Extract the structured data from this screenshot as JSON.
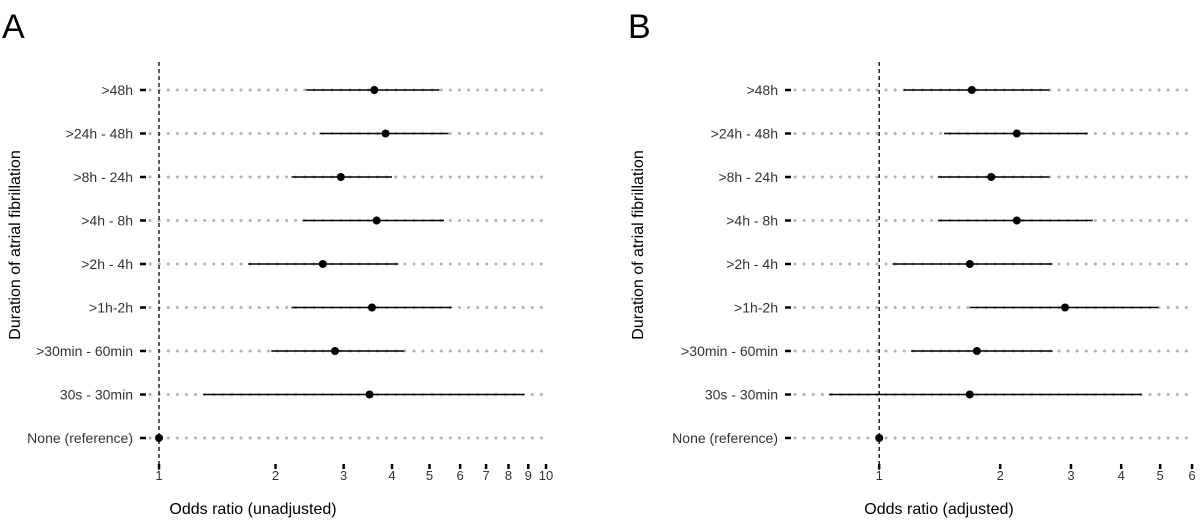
{
  "figure": {
    "background": "#ffffff",
    "dot_color": "#000000",
    "line_color": "#000000",
    "guide_color": "#b3b3b3"
  },
  "chart_data": [
    {
      "type": "scatter",
      "panel_letter": "A",
      "xlabel": "Odds ratio (unadjusted)",
      "ylabel": "Duration of atrial fibrillation",
      "xscale": "log",
      "xlim": [
        0.92,
        10
      ],
      "xticks": [
        1,
        2,
        3,
        4,
        5,
        6,
        7,
        8,
        9,
        10
      ],
      "xtick_labels": [
        "1",
        "2",
        "3",
        "4",
        "5",
        "6",
        "7",
        "8",
        "9",
        "10"
      ],
      "reference_line": 1,
      "grid": "dotted horizontal guides per category",
      "categories": [
        ">48h",
        ">24h - 48h",
        ">8h - 24h",
        ">4h - 8h",
        ">2h - 4h",
        ">1h-2h",
        ">30min - 60min",
        "30s - 30min",
        "None (reference)"
      ],
      "or": [
        3.6,
        3.85,
        2.95,
        3.65,
        2.65,
        3.55,
        2.85,
        3.5,
        1.0
      ],
      "lower": [
        2.4,
        2.6,
        2.2,
        2.35,
        1.7,
        2.2,
        1.95,
        1.3,
        1.0
      ],
      "upper": [
        5.3,
        5.6,
        4.0,
        5.45,
        4.15,
        5.7,
        4.3,
        8.8,
        1.0
      ]
    },
    {
      "type": "scatter",
      "panel_letter": "B",
      "xlabel": "Odds ratio (adjusted)",
      "ylabel": "Duration of atrial fibrillation",
      "xscale": "log",
      "xlim": [
        0.6,
        6
      ],
      "xticks": [
        1,
        2,
        3,
        4,
        5,
        6
      ],
      "xtick_labels": [
        "1",
        "2",
        "3",
        "4",
        "5",
        "6"
      ],
      "reference_line": 1,
      "grid": "dotted horizontal guides per category",
      "categories": [
        ">48h",
        ">24h - 48h",
        ">8h - 24h",
        ">4h - 8h",
        ">2h - 4h",
        ">1h-2h",
        ">30min - 60min",
        "30s - 30min",
        "None (reference)"
      ],
      "or": [
        1.7,
        2.2,
        1.9,
        2.2,
        1.68,
        2.9,
        1.75,
        1.68,
        1.0
      ],
      "lower": [
        1.15,
        1.45,
        1.4,
        1.4,
        1.08,
        1.68,
        1.2,
        0.75,
        1.0
      ],
      "upper": [
        2.65,
        3.3,
        2.65,
        3.4,
        2.7,
        4.95,
        2.7,
        4.5,
        1.0
      ]
    }
  ]
}
